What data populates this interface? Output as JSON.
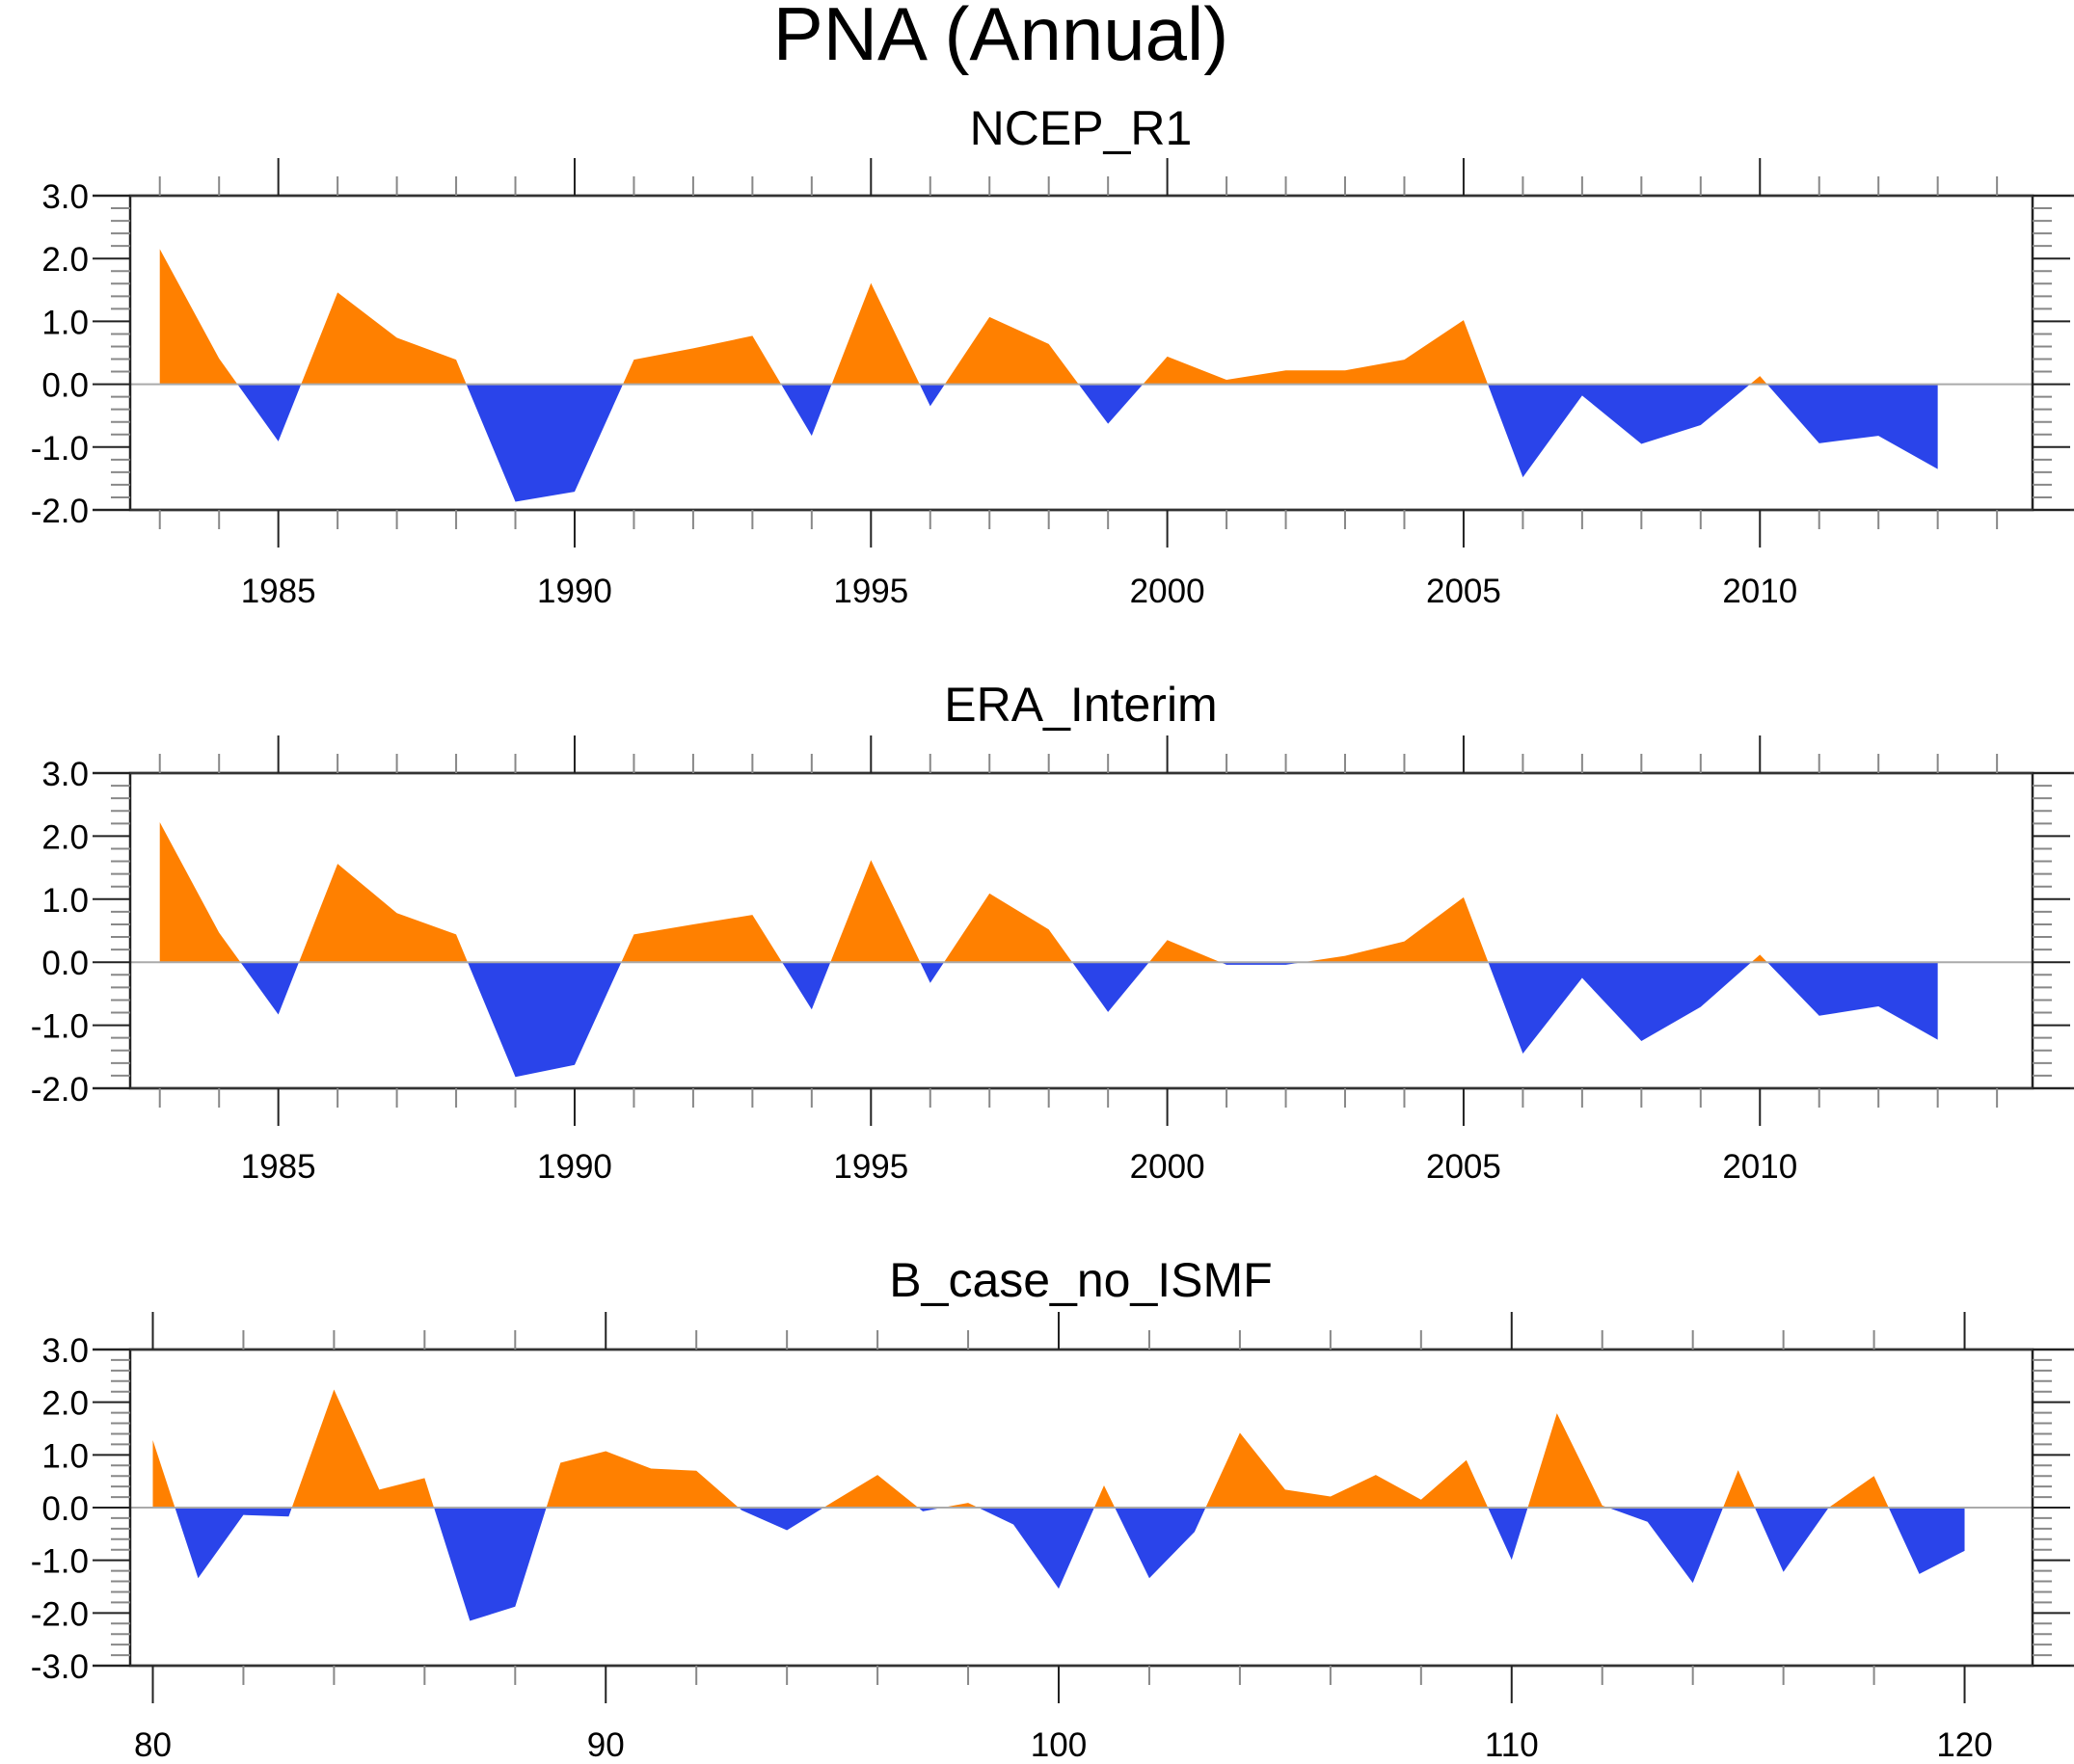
{
  "figure_title": "PNA (Annual)",
  "colors": {
    "positive": "#FF8000",
    "negative": "#2A44EA"
  },
  "chart_data": [
    {
      "type": "area",
      "title": "NCEP_R1",
      "xlabel": "",
      "ylabel": "",
      "xlim": [
        1982.5,
        2014.6
      ],
      "ylim": [
        -2.0,
        3.0
      ],
      "x_major_ticks": [
        1985,
        1990,
        1995,
        2000,
        2005,
        2010
      ],
      "x_tick_labels": [
        "1985",
        "1990",
        "1995",
        "2000",
        "2005",
        "2010"
      ],
      "x_minor_step": 1,
      "y_major_ticks": [
        3.0,
        2.0,
        1.0,
        0.0,
        -1.0,
        -2.0
      ],
      "y_tick_labels": [
        "3.0",
        "2.0",
        "1.0",
        "0.0",
        "-1.0",
        "-2.0"
      ],
      "y_minor_step": 0.2,
      "grid": false,
      "reference_line": 0.0,
      "fill_above": "orange",
      "fill_below": "blue",
      "x": [
        1983,
        1984,
        1985,
        1986,
        1987,
        1988,
        1989,
        1990,
        1991,
        1992,
        1993,
        1994,
        1995,
        1996,
        1997,
        1998,
        1999,
        2000,
        2001,
        2002,
        2003,
        2004,
        2005,
        2006,
        2007,
        2008,
        2009,
        2010,
        2011,
        2012,
        2013
      ],
      "values": [
        2.15,
        0.41,
        -0.91,
        1.46,
        0.74,
        0.39,
        -1.87,
        -1.71,
        0.39,
        0.57,
        0.77,
        -0.82,
        1.61,
        -0.35,
        1.07,
        0.64,
        -0.63,
        0.44,
        0.07,
        0.22,
        0.22,
        0.39,
        1.02,
        -1.48,
        -0.18,
        -0.95,
        -0.65,
        0.13,
        -0.94,
        -0.82,
        -1.35
      ]
    },
    {
      "type": "area",
      "title": "ERA_Interim",
      "xlabel": "",
      "ylabel": "",
      "xlim": [
        1982.5,
        2014.6
      ],
      "ylim": [
        -2.0,
        3.0
      ],
      "x_major_ticks": [
        1985,
        1990,
        1995,
        2000,
        2005,
        2010
      ],
      "x_tick_labels": [
        "1985",
        "1990",
        "1995",
        "2000",
        "2005",
        "2010"
      ],
      "x_minor_step": 1,
      "y_major_ticks": [
        3.0,
        2.0,
        1.0,
        0.0,
        -1.0,
        -2.0
      ],
      "y_tick_labels": [
        "3.0",
        "2.0",
        "1.0",
        "0.0",
        "-1.0",
        "-2.0"
      ],
      "y_minor_step": 0.2,
      "grid": false,
      "reference_line": 0.0,
      "fill_above": "orange",
      "fill_below": "blue",
      "x": [
        1983,
        1984,
        1985,
        1986,
        1987,
        1988,
        1989,
        1990,
        1991,
        1992,
        1993,
        1994,
        1995,
        1996,
        1997,
        1998,
        1999,
        2000,
        2001,
        2002,
        2003,
        2004,
        2005,
        2006,
        2007,
        2008,
        2009,
        2010,
        2011,
        2012,
        2013
      ],
      "values": [
        2.22,
        0.47,
        -0.83,
        1.56,
        0.78,
        0.44,
        -1.82,
        -1.63,
        0.44,
        0.6,
        0.75,
        -0.75,
        1.62,
        -0.33,
        1.09,
        0.52,
        -0.79,
        0.35,
        -0.04,
        -0.04,
        0.1,
        0.33,
        1.03,
        -1.45,
        -0.25,
        -1.25,
        -0.71,
        0.12,
        -0.85,
        -0.7,
        -1.23
      ]
    },
    {
      "type": "area",
      "title": "B_case_no_ISMF",
      "xlabel": "",
      "ylabel": "",
      "xlim": [
        79.5,
        121.5
      ],
      "ylim": [
        -3.0,
        3.0
      ],
      "x_major_ticks": [
        80,
        90,
        100,
        110,
        120
      ],
      "x_tick_labels": [
        "80",
        "90",
        "100",
        "110",
        "120"
      ],
      "x_minor_step": 2,
      "y_major_ticks": [
        3.0,
        2.0,
        1.0,
        0.0,
        -1.0,
        -2.0,
        -3.0
      ],
      "y_tick_labels": [
        "3.0",
        "2.0",
        "1.0",
        "0.0",
        "-1.0",
        "-2.0",
        "-3.0"
      ],
      "y_minor_step": 0.2,
      "grid": false,
      "reference_line": 0.0,
      "fill_above": "orange",
      "fill_below": "blue",
      "x": [
        80,
        81,
        82,
        83,
        84,
        85,
        86,
        87,
        88,
        89,
        90,
        91,
        92,
        93,
        94,
        95,
        96,
        97,
        98,
        99,
        100,
        101,
        102,
        103,
        104,
        105,
        106,
        107,
        108,
        109,
        110,
        111,
        112,
        113,
        114,
        115,
        116,
        117,
        118,
        119,
        120
      ],
      "values": [
        1.28,
        -1.34,
        -0.14,
        -0.17,
        2.24,
        0.34,
        0.56,
        -2.15,
        -1.88,
        0.85,
        1.07,
        0.74,
        0.7,
        -0.05,
        -0.43,
        0.1,
        0.62,
        -0.07,
        0.09,
        -0.32,
        -1.54,
        0.42,
        -1.34,
        -0.46,
        1.42,
        0.34,
        0.21,
        0.62,
        0.15,
        0.9,
        -0.99,
        1.79,
        0.04,
        -0.27,
        -1.43,
        0.71,
        -1.22,
        0.0,
        0.6,
        -1.26,
        -0.82
      ]
    }
  ]
}
